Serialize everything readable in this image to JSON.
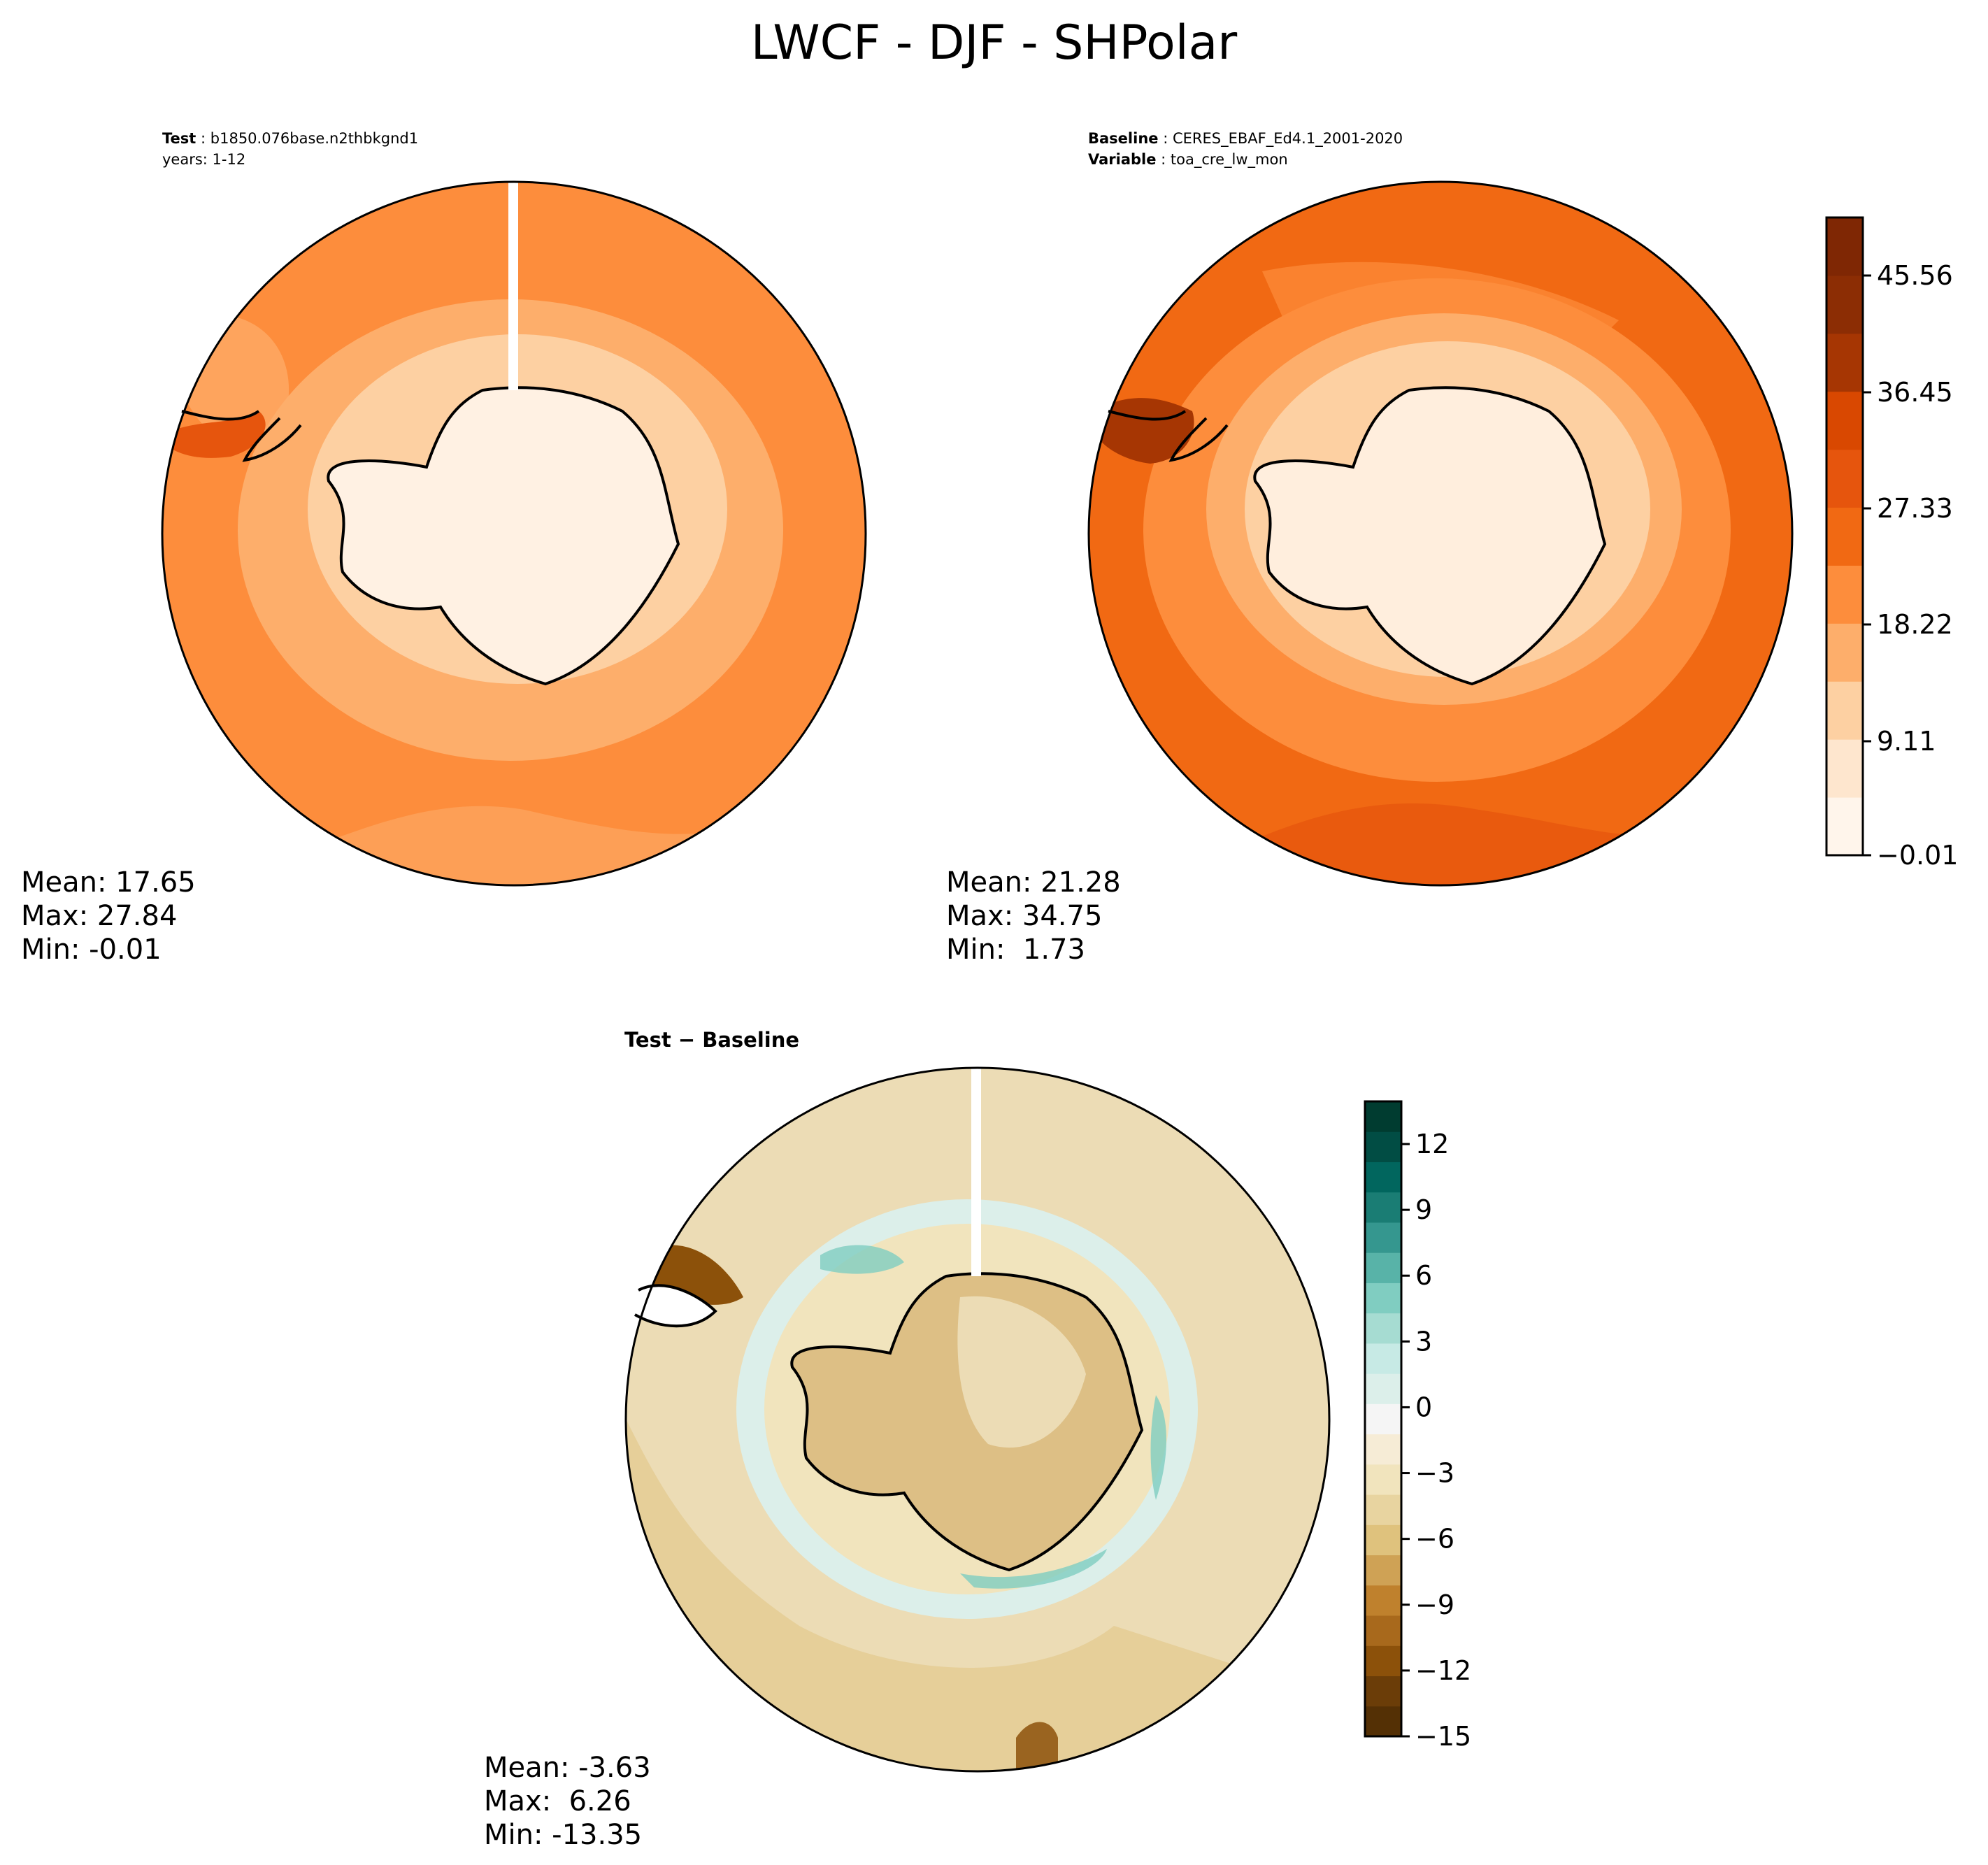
{
  "title": "LWCF - DJF - SHPolar",
  "panels": {
    "test": {
      "label_bold": "Test",
      "label_value": "b1850.076base.n2thbkgnd1",
      "line2": "years: 1-12",
      "stats": {
        "mean": "Mean: 17.65",
        "max": "Max: 27.84",
        "min": "Min: -0.01"
      }
    },
    "baseline": {
      "label_bold": "Baseline",
      "label_value": "CERES_EBAF_Ed4.1_2001-2020",
      "line2_bold": "Variable",
      "line2_value": "toa_cre_lw_mon",
      "stats": {
        "mean": "Mean: 21.28",
        "max": "Max: 34.75",
        "min": "Min:  1.73"
      }
    },
    "diff": {
      "label": "Test − Baseline",
      "stats": {
        "mean": "Mean: -3.63",
        "max": "Max:  6.26",
        "min": "Min: -13.35"
      }
    }
  },
  "colorbar_top": {
    "ticks": [
      "45.56",
      "36.45",
      "27.33",
      "18.22",
      "9.11",
      "−0.01"
    ],
    "colors": [
      "#fff5eb",
      "#fee6ce",
      "#fdd0a2",
      "#fdae6b",
      "#fd8d3c",
      "#f16913",
      "#e6550d",
      "#d94801",
      "#a63603",
      "#8c2d04",
      "#7f2704"
    ]
  },
  "colorbar_diff": {
    "ticks": [
      "12",
      "9",
      "6",
      "3",
      "0",
      "−3",
      "−6",
      "−9",
      "−12",
      "−15"
    ],
    "colors": [
      "#543005",
      "#6b3d08",
      "#8c510a",
      "#a8691c",
      "#bf812d",
      "#cfa255",
      "#dfc27d",
      "#e8d4a0",
      "#f1e4bd",
      "#f6ecd6",
      "#f5f5f5",
      "#dcefea",
      "#c7eae5",
      "#a6dcd2",
      "#80cdc1",
      "#58b3a8",
      "#35978f",
      "#1a7d74",
      "#01665e",
      "#014d44",
      "#003c30"
    ]
  },
  "fills": {
    "test_ocean": "#fd8d3c",
    "test_mid": "#fdae6b",
    "test_ice": "#fff1e3",
    "base_ocean": "#f16913",
    "base_mid": "#fdae6b",
    "base_ice": "#ffeedd",
    "diff_bg": "#ecdcb5",
    "diff_ring": "#dcefea",
    "diff_land": "#ddbf85"
  }
}
